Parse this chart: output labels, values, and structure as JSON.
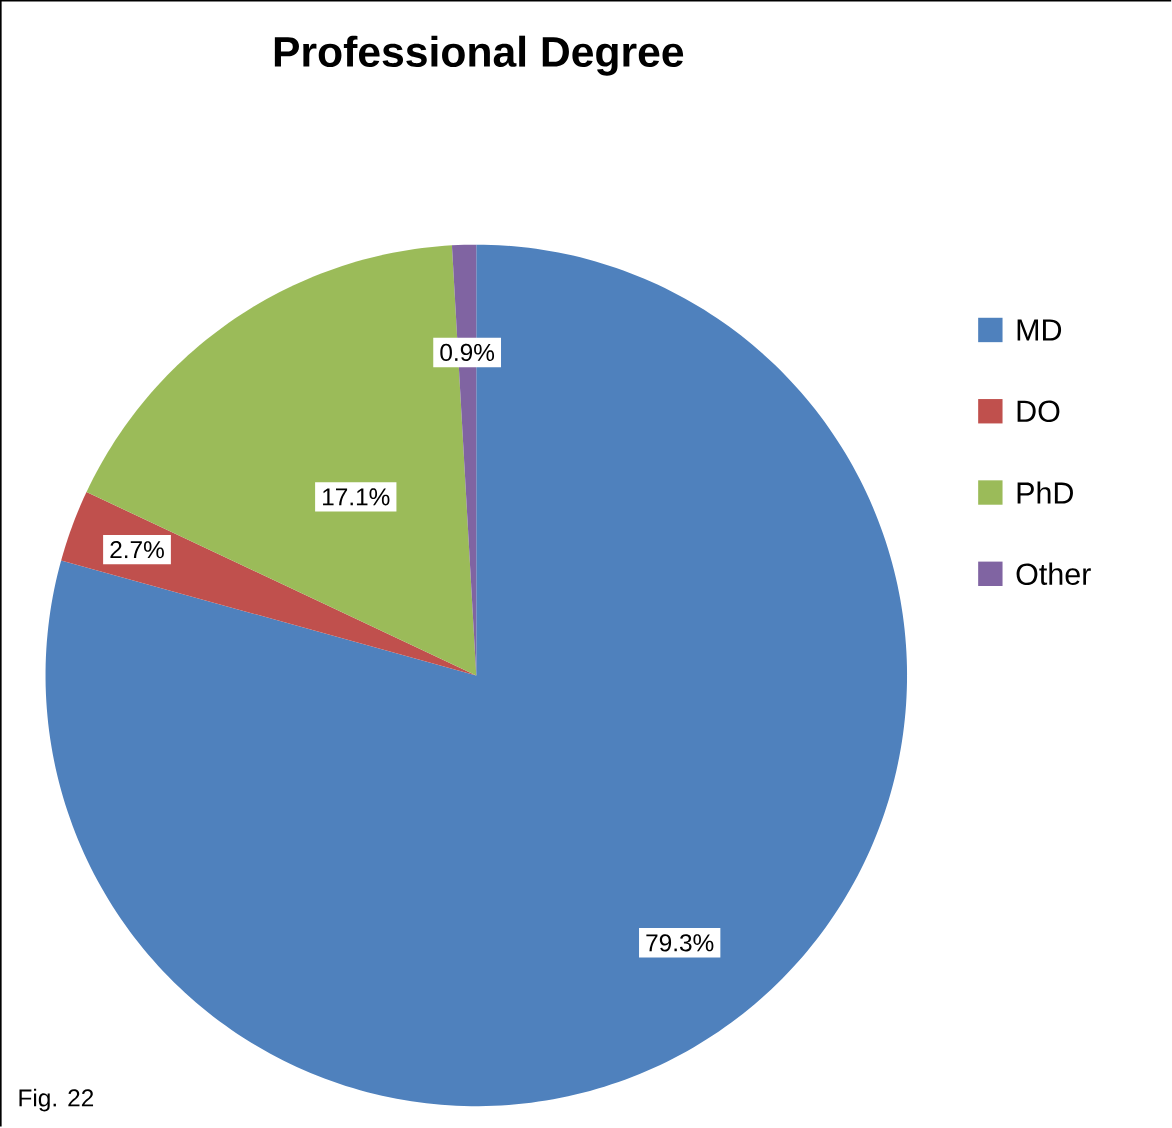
{
  "chart_data": {
    "type": "pie",
    "title": "Professional Degree",
    "categories": [
      "MD",
      "DO",
      "PhD",
      "Other"
    ],
    "values": [
      79.3,
      2.7,
      17.1,
      0.9
    ],
    "value_labels": [
      "79.3%",
      "2.7%",
      "17.1%",
      "0.9%"
    ],
    "colors": [
      "#4f81bd",
      "#c0504d",
      "#9bbb59",
      "#8064a2"
    ],
    "legend": "right",
    "annotations": [
      "Fig. 22"
    ]
  }
}
